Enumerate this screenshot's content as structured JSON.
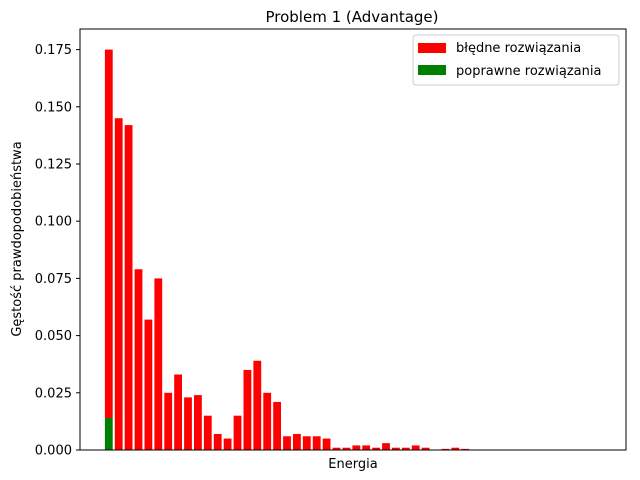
{
  "chart_data": {
    "type": "bar",
    "stacked": true,
    "title": "Problem 1 (Advantage)",
    "xlabel": "Energia",
    "ylabel": "Gęstość prawdopodobieństwa",
    "ylim": [
      0,
      0.184
    ],
    "yticks": [
      0.0,
      0.025,
      0.05,
      0.075,
      0.1,
      0.125,
      0.15,
      0.175
    ],
    "ytick_labels": [
      "0.000",
      "0.025",
      "0.050",
      "0.075",
      "0.100",
      "0.125",
      "0.150",
      "0.175"
    ],
    "xticks_visible": false,
    "grid": false,
    "legend_position": "top-right",
    "series": [
      {
        "name": "błędne rozwiązania",
        "color": "#ff0000",
        "values": [
          0.161,
          0.145,
          0.142,
          0.079,
          0.057,
          0.075,
          0.025,
          0.033,
          0.023,
          0.024,
          0.015,
          0.007,
          0.005,
          0.015,
          0.035,
          0.039,
          0.025,
          0.021,
          0.006,
          0.007,
          0.006,
          0.006,
          0.005,
          0.001,
          0.001,
          0.002,
          0.002,
          0.001,
          0.003,
          0.001,
          0.001,
          0.002,
          0.001,
          0.0,
          0.0005,
          0.001,
          0.0005,
          0.0
        ]
      },
      {
        "name": "poprawne rozwiązania",
        "color": "#008000",
        "values": [
          0.014,
          0,
          0,
          0,
          0,
          0,
          0,
          0,
          0,
          0,
          0,
          0,
          0,
          0,
          0,
          0,
          0,
          0,
          0,
          0,
          0,
          0,
          0,
          0,
          0,
          0,
          0,
          0,
          0,
          0,
          0,
          0,
          0,
          0,
          0,
          0,
          0,
          0
        ]
      }
    ]
  }
}
